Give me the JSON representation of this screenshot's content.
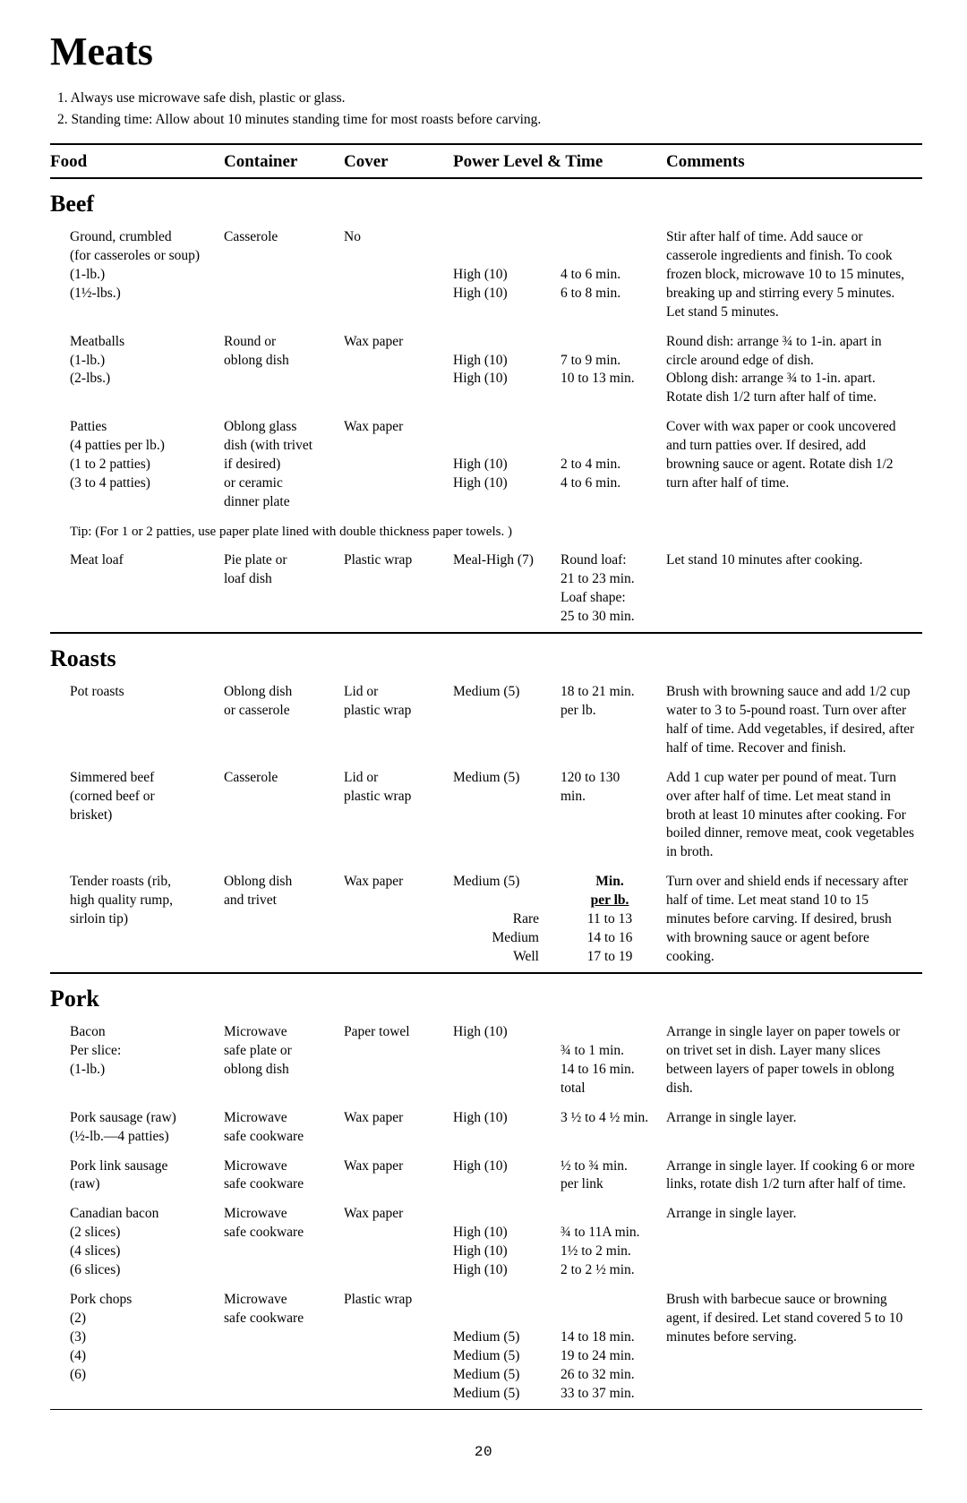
{
  "title": "Meats",
  "notes": [
    "1. Always use microwave safe dish, plastic or glass.",
    "2. Standing time: Allow about 10 minutes standing time for most roasts before carving."
  ],
  "header": {
    "food": "Food",
    "container": "Container",
    "cover": "Cover",
    "power": "Power Level & Time",
    "comments": "Comments"
  },
  "sections": {
    "beef": "Beef",
    "roasts": "Roasts",
    "pork": "Pork"
  },
  "beef": {
    "ground": {
      "name1": "Ground, crumbled",
      "name2": "(for casseroles or soup)",
      "name3": "(1-lb.)",
      "name4": "(1½-lbs.)",
      "container": "Casserole",
      "cover": "No",
      "power1": "High (10)",
      "power2": "High (10)",
      "time1": "4 to 6 min.",
      "time2": "6 to 8 min.",
      "comments": "Stir after half of time. Add sauce or casserole ingredients and finish. To cook frozen block, microwave 10 to 15 minutes, breaking up and stirring every 5 minutes. Let stand 5 minutes."
    },
    "meatballs": {
      "name1": "Meatballs",
      "name2": "(1-lb.)",
      "name3": "(2-lbs.)",
      "container1": "Round or",
      "container2": "oblong dish",
      "cover": "Wax paper",
      "power1": "High (10)",
      "power2": "High (10)",
      "time1": "7 to 9 min.",
      "time2": "10 to 13 min.",
      "comments": "Round dish: arrange ¾ to 1-in. apart in circle around edge of dish.\nOblong dish: arrange ¾ to 1-in. apart. Rotate dish 1/2 turn after half of time."
    },
    "patties": {
      "name1": "Patties",
      "name2": "(4 patties per lb.)",
      "name3": "(1 to 2 patties)",
      "name4": "(3 to 4 patties)",
      "container1": "Oblong glass",
      "container2": "dish (with trivet",
      "container3": "if desired)",
      "container4": "or ceramic",
      "container5": "dinner plate",
      "cover": "Wax paper",
      "power1": "High (10)",
      "power2": "High (10)",
      "time1": "2 to 4 min.",
      "time2": "4 to 6 min.",
      "comments": "Cover with wax paper or cook uncovered and turn patties over. If desired, add browning sauce or agent. Rotate dish 1/2 turn after half of time."
    },
    "tip": "Tip: (For 1 or 2 patties, use paper plate lined with double thickness paper towels. )",
    "meatloaf": {
      "name": "Meat loaf",
      "container1": "Pie plate or",
      "container2": "loaf dish",
      "cover": "Plastic wrap",
      "power": "Meal-High (7)",
      "time1": "Round loaf:",
      "time2": "21 to 23 min.",
      "time3": "Loaf shape:",
      "time4": "25 to 30 min.",
      "comments": "Let stand 10 minutes after cooking."
    }
  },
  "roasts": {
    "pot": {
      "name": "Pot roasts",
      "container1": "Oblong dish",
      "container2": "or casserole",
      "cover1": "Lid or",
      "cover2": "plastic wrap",
      "power": "Medium (5)",
      "time1": "18 to 21 min.",
      "time2": "per lb.",
      "comments": "Brush with browning sauce and add 1/2 cup water to 3 to 5-pound roast. Turn over after half of time. Add vegetables, if desired, after half of time. Recover and finish."
    },
    "simmered": {
      "name1": "Simmered beef",
      "name2": "(corned beef or",
      "name3": "brisket)",
      "container": "Casserole",
      "cover1": "Lid or",
      "cover2": "plastic wrap",
      "power": "Medium (5)",
      "time1": "120 to 130",
      "time2": "min.",
      "comments": "Add 1 cup water per pound of meat. Turn over after half of time. Let meat stand in broth at least 10 minutes after cooking. For boiled dinner, remove meat, cook vegetables in broth."
    },
    "tender": {
      "name1": "Tender roasts (rib,",
      "name2": "high quality rump,",
      "name3": "sirloin tip)",
      "container1": "Oblong dish",
      "container2": "and trivet",
      "cover": "Wax paper",
      "power": "Medium (5)",
      "rare": "Rare",
      "medium": "Medium",
      "well": "Well",
      "timeHead1": "Min.",
      "timeHead2": "per lb.",
      "t1": "11 to 13",
      "t2": "14 to 16",
      "t3": "17 to 19",
      "comments": "Turn over and shield ends if necessary after half of time. Let meat stand 10 to 15 minutes before carving. If desired, brush with browning sauce or agent before cooking."
    }
  },
  "pork": {
    "bacon": {
      "name1": "Bacon",
      "name2": "Per slice:",
      "name3": "(1-lb.)",
      "container1": "Microwave",
      "container2": "safe plate or",
      "container3": "oblong dish",
      "cover": "Paper towel",
      "power": "High (10)",
      "time1": "¾ to 1 min.",
      "time2": "14 to 16 min.",
      "time3": "total",
      "comments": "Arrange in single layer on paper towels or on trivet set in dish. Layer many slices between layers of paper towels in oblong dish."
    },
    "sausageRaw": {
      "name1": "Pork sausage (raw)",
      "name2": "(½-lb.—4 patties)",
      "container1": "Microwave",
      "container2": "safe cookware",
      "cover": "Wax paper",
      "power": "High (10)",
      "time": "3 ½ to 4 ½ min.",
      "comments": "Arrange in single layer."
    },
    "link": {
      "name1": "Pork link sausage",
      "name2": "(raw)",
      "container1": "Microwave",
      "container2": "safe cookware",
      "cover": "Wax paper",
      "power": "High (10)",
      "time1": "½ to ¾ min.",
      "time2": "per link",
      "comments": "Arrange in single layer. If cooking 6 or more links, rotate dish 1/2 turn after half of time."
    },
    "canadian": {
      "name1": "Canadian bacon",
      "name2": "(2 slices)",
      "name3": "(4 slices)",
      "name4": "(6 slices)",
      "container1": "Microwave",
      "container2": "safe cookware",
      "cover": "Wax paper",
      "power1": "High (10)",
      "power2": "High (10)",
      "power3": "High (10)",
      "time1": "¾ to 11A min.",
      "time2": "1½ to 2 min.",
      "time3": "2 to 2 ½ min.",
      "comments": "Arrange in single layer."
    },
    "chops": {
      "name1": "Pork chops",
      "name2": "(2)",
      "name3": "(3)",
      "name4": "(4)",
      "name5": "(6)",
      "container1": "Microwave",
      "container2": "safe cookware",
      "cover": "Plastic wrap",
      "power1": "Medium (5)",
      "power2": "Medium (5)",
      "power3": "Medium (5)",
      "power4": "Medium (5)",
      "time1": "14 to 18 min.",
      "time2": "19 to 24 min.",
      "time3": "26 to 32 min.",
      "time4": "33 to 37 min.",
      "comments": "Brush with barbecue sauce or browning agent, if desired. Let stand covered 5 to 10 minutes before serving."
    }
  },
  "pageNumber": "20"
}
